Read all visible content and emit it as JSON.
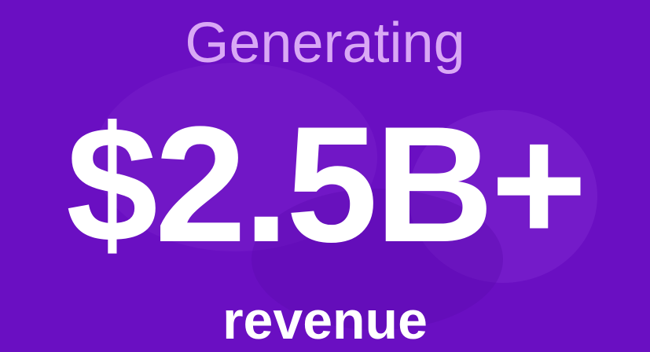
{
  "hero": {
    "lead": "Generating",
    "figure": "$2.5B+",
    "tail": "revenue"
  }
}
